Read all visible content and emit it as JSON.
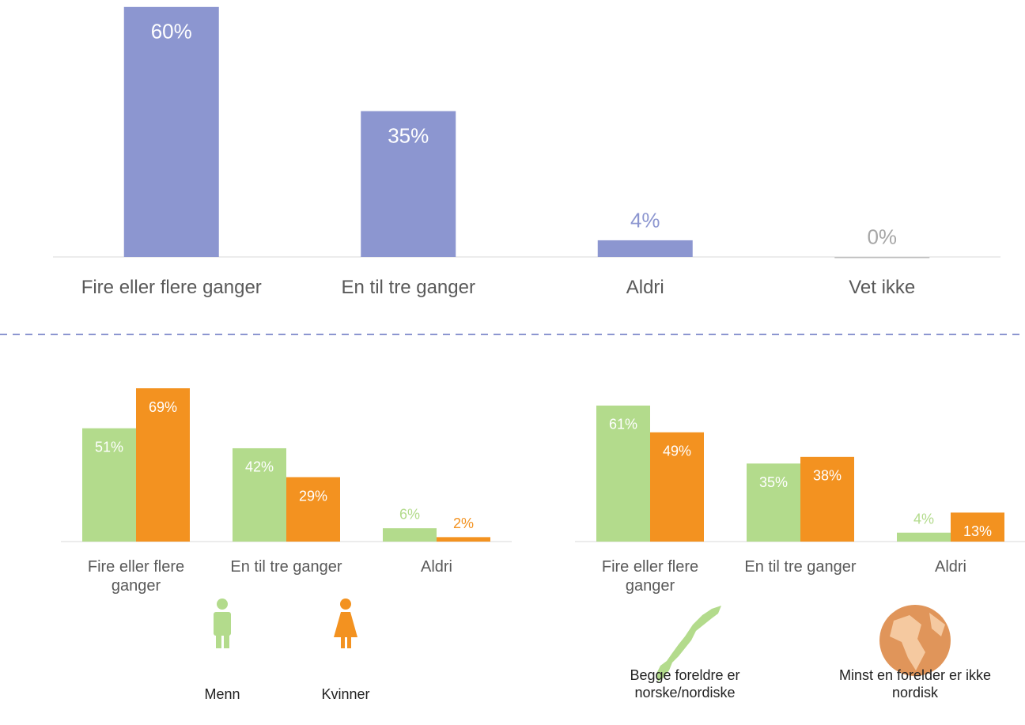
{
  "chart_data": [
    {
      "type": "bar",
      "categories": [
        "Fire eller flere ganger",
        "En til tre ganger",
        "Aldri",
        "Vet ikke"
      ],
      "values": [
        60,
        35,
        4,
        0
      ],
      "value_labels": [
        "60%",
        "35%",
        "4%",
        "0%"
      ],
      "color": "#8c96d0"
    },
    {
      "type": "bar",
      "categories": [
        "Fire eller flere ganger",
        "En til tre ganger",
        "Aldri"
      ],
      "series": [
        {
          "name": "Menn",
          "color": "#b3db8c",
          "values": [
            51,
            42,
            6
          ],
          "value_labels": [
            "51%",
            "42%",
            "6%"
          ]
        },
        {
          "name": "Kvinner",
          "color": "#f39220",
          "values": [
            69,
            29,
            2
          ],
          "value_labels": [
            "69%",
            "29%",
            "2%"
          ]
        }
      ]
    },
    {
      "type": "bar",
      "categories": [
        "Fire eller flere ganger",
        "En til tre ganger",
        "Aldri"
      ],
      "series": [
        {
          "name": "Begge foreldre er norske/nordiske",
          "color": "#b3db8c",
          "values": [
            61,
            35,
            4
          ],
          "value_labels": [
            "61%",
            "35%",
            "4%"
          ]
        },
        {
          "name": "Minst en forelder er ikke nordisk",
          "color": "#f39220",
          "values": [
            49,
            38,
            13
          ],
          "value_labels": [
            "49%",
            "38%",
            "13%"
          ]
        }
      ]
    }
  ]
}
